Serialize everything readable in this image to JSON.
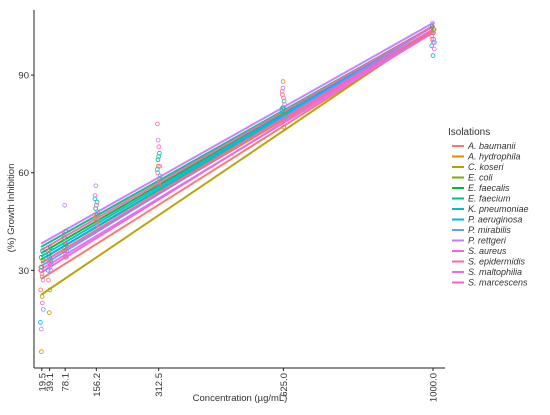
{
  "chart_data": {
    "type": "scatter",
    "xlabel": "Concentration (µg/mL)",
    "ylabel": "(%) Growth Inhibition",
    "xlim": [
      0,
      1030
    ],
    "ylim": [
      0,
      110
    ],
    "x_ticks": [
      19.5,
      39.1,
      78.1,
      156.2,
      312.5,
      625.0,
      1000.0
    ],
    "x_tick_labels": [
      "19.5",
      "39.1",
      "78.1",
      "156.2",
      "312.5",
      "625.0",
      "1000.0"
    ],
    "y_ticks": [
      30,
      60,
      90
    ],
    "y_tick_labels": [
      "30",
      "60",
      "90"
    ],
    "grid": false,
    "legend_title": "Isolations",
    "legend_position": "right",
    "series": [
      {
        "name": "A. baumanii",
        "color": "#F8766D",
        "fit": {
          "intercept": 26.0,
          "slope": 0.0773
        },
        "points": [
          [
            19.5,
            24
          ],
          [
            19.5,
            31
          ],
          [
            39.1,
            27
          ],
          [
            78.1,
            36
          ],
          [
            156.2,
            46
          ],
          [
            312.5,
            60
          ],
          [
            625.0,
            84
          ],
          [
            1000.0,
            101
          ]
        ]
      },
      {
        "name": "A. hydrophila",
        "color": "#DE8C00",
        "fit": {
          "intercept": 31.0,
          "slope": 0.0723
        },
        "points": [
          [
            19.5,
            5
          ],
          [
            19.5,
            30
          ],
          [
            39.1,
            17
          ],
          [
            78.1,
            36
          ],
          [
            156.2,
            47
          ],
          [
            312.5,
            62
          ],
          [
            625.0,
            88
          ],
          [
            1000.0,
            103
          ]
        ]
      },
      {
        "name": "C. koseri",
        "color": "#B79F00",
        "fit": {
          "intercept": 21.0,
          "slope": 0.083
        },
        "points": [
          [
            19.5,
            22
          ],
          [
            19.5,
            28
          ],
          [
            39.1,
            24
          ],
          [
            78.1,
            34
          ],
          [
            156.2,
            45
          ],
          [
            312.5,
            56
          ],
          [
            625.0,
            74
          ],
          [
            1000.0,
            104
          ]
        ]
      },
      {
        "name": "E. coli",
        "color": "#7CAE00",
        "fit": {
          "intercept": 32.0,
          "slope": 0.072
        },
        "points": [
          [
            19.5,
            33
          ],
          [
            39.1,
            33
          ],
          [
            78.1,
            38
          ],
          [
            156.2,
            47
          ],
          [
            312.5,
            58
          ],
          [
            625.0,
            78
          ],
          [
            1000.0,
            104
          ]
        ]
      },
      {
        "name": "E. faecalis",
        "color": "#00BA38",
        "fit": {
          "intercept": 34.0,
          "slope": 0.071
        },
        "points": [
          [
            19.5,
            34
          ],
          [
            39.1,
            35
          ],
          [
            78.1,
            40
          ],
          [
            156.2,
            49
          ],
          [
            312.5,
            64
          ],
          [
            625.0,
            80
          ],
          [
            1000.0,
            105
          ]
        ]
      },
      {
        "name": "E. faecium",
        "color": "#00C08B",
        "fit": {
          "intercept": 36.0,
          "slope": 0.069
        },
        "points": [
          [
            19.5,
            36
          ],
          [
            39.1,
            37
          ],
          [
            78.1,
            42
          ],
          [
            156.2,
            51
          ],
          [
            312.5,
            66
          ],
          [
            625.0,
            82
          ],
          [
            1000.0,
            101
          ]
        ]
      },
      {
        "name": "K. pneumoniae",
        "color": "#00BFC4",
        "fit": {
          "intercept": 33.0,
          "slope": 0.072
        },
        "points": [
          [
            19.5,
            31
          ],
          [
            39.1,
            34
          ],
          [
            78.1,
            38
          ],
          [
            156.2,
            50
          ],
          [
            312.5,
            65
          ],
          [
            625.0,
            80
          ],
          [
            1000.0,
            96
          ]
        ]
      },
      {
        "name": "P. aeruginosa",
        "color": "#00B4F0",
        "fit": {
          "intercept": 32.0,
          "slope": 0.073
        },
        "points": [
          [
            19.5,
            14
          ],
          [
            39.1,
            30
          ],
          [
            78.1,
            37
          ],
          [
            156.2,
            52
          ],
          [
            312.5,
            61
          ],
          [
            625.0,
            79
          ],
          [
            1000.0,
            99
          ]
        ]
      },
      {
        "name": "P. mirabilis",
        "color": "#619CFF",
        "fit": {
          "intercept": 30.0,
          "slope": 0.075
        },
        "points": [
          [
            19.5,
            18
          ],
          [
            39.1,
            32
          ],
          [
            78.1,
            36
          ],
          [
            156.2,
            48
          ],
          [
            312.5,
            59
          ],
          [
            625.0,
            77
          ],
          [
            1000.0,
            100
          ]
        ]
      },
      {
        "name": "P. rettgeri",
        "color": "#C77CFF",
        "fit": {
          "intercept": 37.0,
          "slope": 0.069
        },
        "points": [
          [
            19.5,
            12
          ],
          [
            39.1,
            33
          ],
          [
            78.1,
            50
          ],
          [
            156.2,
            56
          ],
          [
            312.5,
            70
          ],
          [
            625.0,
            86
          ],
          [
            1000.0,
            106
          ]
        ]
      },
      {
        "name": "S. aureus",
        "color": "#F564E3",
        "fit": {
          "intercept": 28.0,
          "slope": 0.076
        },
        "points": [
          [
            19.5,
            20
          ],
          [
            39.1,
            31
          ],
          [
            78.1,
            35
          ],
          [
            156.2,
            44
          ],
          [
            312.5,
            57
          ],
          [
            625.0,
            76
          ],
          [
            1000.0,
            103
          ]
        ]
      },
      {
        "name": "S. epidermidis",
        "color": "#FF64B0",
        "fit": {
          "intercept": 35.0,
          "slope": 0.07
        },
        "points": [
          [
            19.5,
            30
          ],
          [
            39.1,
            36
          ],
          [
            78.1,
            41
          ],
          [
            156.2,
            53
          ],
          [
            312.5,
            75
          ],
          [
            625.0,
            85
          ],
          [
            1000.0,
            102
          ]
        ]
      },
      {
        "name": "S. maltophilia",
        "color": "#E76BF3",
        "fit": {
          "intercept": 29.0,
          "slope": 0.074
        },
        "points": [
          [
            19.5,
            27
          ],
          [
            39.1,
            30
          ],
          [
            78.1,
            34
          ],
          [
            156.2,
            46
          ],
          [
            312.5,
            62
          ],
          [
            625.0,
            81
          ],
          [
            1000.0,
            98
          ]
        ]
      },
      {
        "name": "S. marcescens",
        "color": "#FF61C3",
        "fit": {
          "intercept": 31.0,
          "slope": 0.073
        },
        "points": [
          [
            19.5,
            29
          ],
          [
            39.1,
            32
          ],
          [
            78.1,
            39
          ],
          [
            156.2,
            50
          ],
          [
            312.5,
            68
          ],
          [
            625.0,
            83
          ],
          [
            1000.0,
            100
          ]
        ]
      }
    ]
  }
}
